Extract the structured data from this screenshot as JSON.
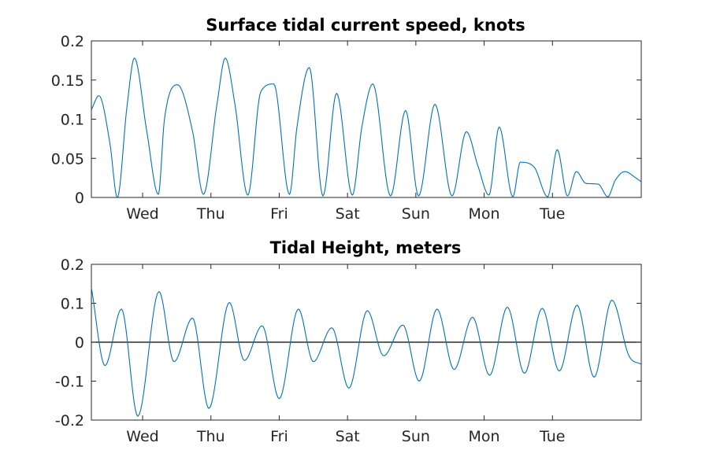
{
  "colors": {
    "series": "#0072bd",
    "axis": "#262626",
    "title": "#000000",
    "reference_line": "#000000"
  },
  "chart_data": [
    {
      "type": "line",
      "title": "Surface tidal current speed, knots",
      "xlabel": "",
      "ylabel": "",
      "grid": false,
      "xlim": [
        0.25,
        8.3
      ],
      "ylim": [
        0,
        0.2
      ],
      "x_ticks": [
        {
          "x": 1,
          "label": "Wed"
        },
        {
          "x": 2,
          "label": "Thu"
        },
        {
          "x": 3,
          "label": "Fri"
        },
        {
          "x": 4,
          "label": "Sat"
        },
        {
          "x": 5,
          "label": "Sun"
        },
        {
          "x": 6,
          "label": "Mon"
        },
        {
          "x": 7,
          "label": "Tue"
        }
      ],
      "y_ticks": [
        {
          "y": 0,
          "label": "0"
        },
        {
          "y": 0.05,
          "label": "0.05"
        },
        {
          "y": 0.1,
          "label": "0.1"
        },
        {
          "y": 0.15,
          "label": "0.15"
        },
        {
          "y": 0.2,
          "label": "0.2"
        }
      ],
      "series": [
        {
          "x": [
            0.25,
            0.36,
            0.52,
            0.63,
            0.77,
            0.88,
            1.06,
            1.23,
            1.32,
            1.51,
            1.73,
            1.89,
            2.09,
            2.21,
            2.35,
            2.54,
            2.73,
            2.92,
            3.15,
            3.26,
            3.44,
            3.64,
            3.84,
            4.07,
            4.21,
            4.37,
            4.63,
            4.85,
            5.04,
            5.28,
            5.53,
            5.74,
            5.91,
            6.07,
            6.22,
            6.42,
            6.53,
            6.73,
            6.93,
            7.07,
            7.22,
            7.35,
            7.49,
            7.67,
            7.81,
            7.92,
            8.06,
            8.22,
            8.3
          ],
          "y": [
            0.112,
            0.13,
            0.07,
            0.0,
            0.115,
            0.178,
            0.085,
            0.004,
            0.1,
            0.144,
            0.085,
            0.004,
            0.12,
            0.178,
            0.12,
            0.003,
            0.135,
            0.145,
            0.004,
            0.09,
            0.166,
            0.002,
            0.133,
            0.003,
            0.09,
            0.145,
            0.002,
            0.111,
            0.002,
            0.119,
            0.002,
            0.084,
            0.04,
            0.003,
            0.09,
            0.001,
            0.045,
            0.039,
            0.001,
            0.061,
            0.002,
            0.033,
            0.018,
            0.017,
            0.001,
            0.022,
            0.033,
            0.025,
            0.02
          ]
        }
      ]
    },
    {
      "type": "line",
      "title": "Tidal Height, meters",
      "xlabel": "",
      "ylabel": "",
      "grid": false,
      "xlim": [
        0.25,
        8.3
      ],
      "ylim": [
        -0.2,
        0.2
      ],
      "reference_line_y": 0,
      "x_ticks": [
        {
          "x": 1,
          "label": "Wed"
        },
        {
          "x": 2,
          "label": "Thu"
        },
        {
          "x": 3,
          "label": "Fri"
        },
        {
          "x": 4,
          "label": "Sat"
        },
        {
          "x": 5,
          "label": "Sun"
        },
        {
          "x": 6,
          "label": "Mon"
        },
        {
          "x": 7,
          "label": "Tue"
        }
      ],
      "y_ticks": [
        {
          "y": -0.2,
          "label": "-0.2"
        },
        {
          "y": -0.1,
          "label": "-0.1"
        },
        {
          "y": 0,
          "label": "0"
        },
        {
          "y": 0.1,
          "label": "0.1"
        },
        {
          "y": 0.2,
          "label": "0.2"
        }
      ],
      "series": [
        {
          "x": [
            0.25,
            0.45,
            0.69,
            0.93,
            1.24,
            1.46,
            1.73,
            1.97,
            2.27,
            2.49,
            2.75,
            3.0,
            3.28,
            3.5,
            3.77,
            4.02,
            4.29,
            4.53,
            4.81,
            5.05,
            5.31,
            5.56,
            5.83,
            6.08,
            6.34,
            6.59,
            6.85,
            7.1,
            7.36,
            7.61,
            7.87,
            8.12,
            8.3
          ],
          "y": [
            0.14,
            -0.06,
            0.085,
            -0.19,
            0.13,
            -0.05,
            0.062,
            -0.17,
            0.102,
            -0.047,
            0.042,
            -0.145,
            0.085,
            -0.05,
            0.037,
            -0.118,
            0.081,
            -0.035,
            0.044,
            -0.1,
            0.085,
            -0.07,
            0.064,
            -0.085,
            0.09,
            -0.08,
            0.087,
            -0.074,
            0.095,
            -0.09,
            0.108,
            -0.035,
            -0.057
          ]
        }
      ]
    }
  ]
}
